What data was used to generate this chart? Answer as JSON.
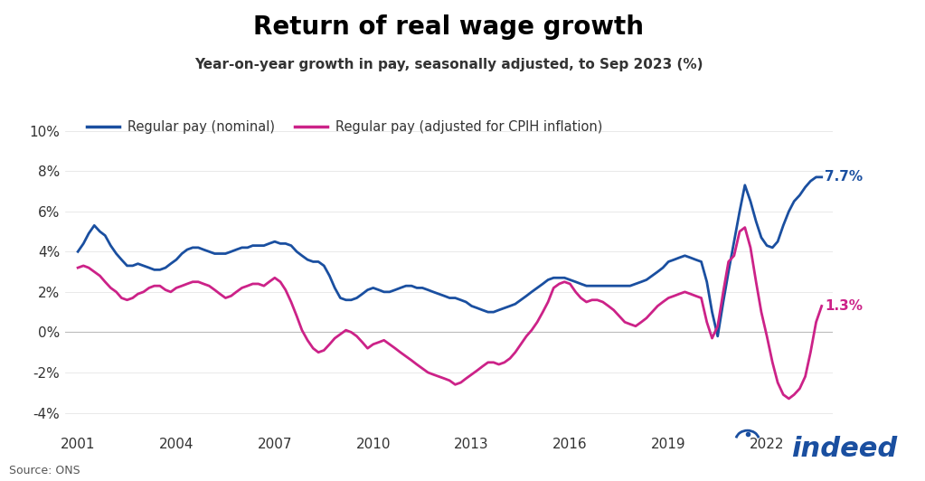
{
  "title": "Return of real wage growth",
  "subtitle": "Year-on-year growth in pay, seasonally adjusted, to Sep 2023 (%)",
  "source": "Source: ONS",
  "nominal_label": "Regular pay (nominal)",
  "real_label": "Regular pay (adjusted for CPIH inflation)",
  "nominal_color": "#1a4fa0",
  "real_color": "#cc2288",
  "nominal_end_label": "7.7%",
  "real_end_label": "1.3%",
  "ylim": [
    -5,
    11
  ],
  "yticks": [
    -4,
    -2,
    0,
    2,
    4,
    6,
    8,
    10
  ],
  "ytick_labels": [
    "-4%",
    "-2%",
    "0%",
    "2%",
    "4%",
    "6%",
    "8%",
    "10%"
  ],
  "xtick_years": [
    2001,
    2004,
    2007,
    2010,
    2013,
    2016,
    2019,
    2022
  ],
  "background_color": "#ffffff",
  "indeed_color": "#1a4fa0",
  "nominal_data": [
    [
      2001.0,
      4.0
    ],
    [
      2001.17,
      4.4
    ],
    [
      2001.33,
      4.9
    ],
    [
      2001.5,
      5.3
    ],
    [
      2001.67,
      5.0
    ],
    [
      2001.83,
      4.8
    ],
    [
      2002.0,
      4.3
    ],
    [
      2002.17,
      3.9
    ],
    [
      2002.33,
      3.6
    ],
    [
      2002.5,
      3.3
    ],
    [
      2002.67,
      3.3
    ],
    [
      2002.83,
      3.4
    ],
    [
      2003.0,
      3.3
    ],
    [
      2003.17,
      3.2
    ],
    [
      2003.33,
      3.1
    ],
    [
      2003.5,
      3.1
    ],
    [
      2003.67,
      3.2
    ],
    [
      2003.83,
      3.4
    ],
    [
      2004.0,
      3.6
    ],
    [
      2004.17,
      3.9
    ],
    [
      2004.33,
      4.1
    ],
    [
      2004.5,
      4.2
    ],
    [
      2004.67,
      4.2
    ],
    [
      2004.83,
      4.1
    ],
    [
      2005.0,
      4.0
    ],
    [
      2005.17,
      3.9
    ],
    [
      2005.33,
      3.9
    ],
    [
      2005.5,
      3.9
    ],
    [
      2005.67,
      4.0
    ],
    [
      2005.83,
      4.1
    ],
    [
      2006.0,
      4.2
    ],
    [
      2006.17,
      4.2
    ],
    [
      2006.33,
      4.3
    ],
    [
      2006.5,
      4.3
    ],
    [
      2006.67,
      4.3
    ],
    [
      2006.83,
      4.4
    ],
    [
      2007.0,
      4.5
    ],
    [
      2007.17,
      4.4
    ],
    [
      2007.33,
      4.4
    ],
    [
      2007.5,
      4.3
    ],
    [
      2007.67,
      4.0
    ],
    [
      2007.83,
      3.8
    ],
    [
      2008.0,
      3.6
    ],
    [
      2008.17,
      3.5
    ],
    [
      2008.33,
      3.5
    ],
    [
      2008.5,
      3.3
    ],
    [
      2008.67,
      2.8
    ],
    [
      2008.83,
      2.2
    ],
    [
      2009.0,
      1.7
    ],
    [
      2009.17,
      1.6
    ],
    [
      2009.33,
      1.6
    ],
    [
      2009.5,
      1.7
    ],
    [
      2009.67,
      1.9
    ],
    [
      2009.83,
      2.1
    ],
    [
      2010.0,
      2.2
    ],
    [
      2010.17,
      2.1
    ],
    [
      2010.33,
      2.0
    ],
    [
      2010.5,
      2.0
    ],
    [
      2010.67,
      2.1
    ],
    [
      2010.83,
      2.2
    ],
    [
      2011.0,
      2.3
    ],
    [
      2011.17,
      2.3
    ],
    [
      2011.33,
      2.2
    ],
    [
      2011.5,
      2.2
    ],
    [
      2011.67,
      2.1
    ],
    [
      2011.83,
      2.0
    ],
    [
      2012.0,
      1.9
    ],
    [
      2012.17,
      1.8
    ],
    [
      2012.33,
      1.7
    ],
    [
      2012.5,
      1.7
    ],
    [
      2012.67,
      1.6
    ],
    [
      2012.83,
      1.5
    ],
    [
      2013.0,
      1.3
    ],
    [
      2013.17,
      1.2
    ],
    [
      2013.33,
      1.1
    ],
    [
      2013.5,
      1.0
    ],
    [
      2013.67,
      1.0
    ],
    [
      2013.83,
      1.1
    ],
    [
      2014.0,
      1.2
    ],
    [
      2014.17,
      1.3
    ],
    [
      2014.33,
      1.4
    ],
    [
      2014.5,
      1.6
    ],
    [
      2014.67,
      1.8
    ],
    [
      2014.83,
      2.0
    ],
    [
      2015.0,
      2.2
    ],
    [
      2015.17,
      2.4
    ],
    [
      2015.33,
      2.6
    ],
    [
      2015.5,
      2.7
    ],
    [
      2015.67,
      2.7
    ],
    [
      2015.83,
      2.7
    ],
    [
      2016.0,
      2.6
    ],
    [
      2016.17,
      2.5
    ],
    [
      2016.33,
      2.4
    ],
    [
      2016.5,
      2.3
    ],
    [
      2016.67,
      2.3
    ],
    [
      2016.83,
      2.3
    ],
    [
      2017.0,
      2.3
    ],
    [
      2017.17,
      2.3
    ],
    [
      2017.33,
      2.3
    ],
    [
      2017.5,
      2.3
    ],
    [
      2017.67,
      2.3
    ],
    [
      2017.83,
      2.3
    ],
    [
      2018.0,
      2.4
    ],
    [
      2018.17,
      2.5
    ],
    [
      2018.33,
      2.6
    ],
    [
      2018.5,
      2.8
    ],
    [
      2018.67,
      3.0
    ],
    [
      2018.83,
      3.2
    ],
    [
      2019.0,
      3.5
    ],
    [
      2019.17,
      3.6
    ],
    [
      2019.33,
      3.7
    ],
    [
      2019.5,
      3.8
    ],
    [
      2019.67,
      3.7
    ],
    [
      2019.83,
      3.6
    ],
    [
      2020.0,
      3.5
    ],
    [
      2020.17,
      2.5
    ],
    [
      2020.33,
      1.0
    ],
    [
      2020.5,
      -0.2
    ],
    [
      2020.67,
      1.5
    ],
    [
      2020.83,
      3.0
    ],
    [
      2021.0,
      4.5
    ],
    [
      2021.17,
      6.0
    ],
    [
      2021.33,
      7.3
    ],
    [
      2021.5,
      6.5
    ],
    [
      2021.67,
      5.5
    ],
    [
      2021.83,
      4.7
    ],
    [
      2022.0,
      4.3
    ],
    [
      2022.17,
      4.2
    ],
    [
      2022.33,
      4.5
    ],
    [
      2022.5,
      5.3
    ],
    [
      2022.67,
      6.0
    ],
    [
      2022.83,
      6.5
    ],
    [
      2023.0,
      6.8
    ],
    [
      2023.17,
      7.2
    ],
    [
      2023.33,
      7.5
    ],
    [
      2023.5,
      7.7
    ],
    [
      2023.67,
      7.7
    ]
  ],
  "real_data": [
    [
      2001.0,
      3.2
    ],
    [
      2001.17,
      3.3
    ],
    [
      2001.33,
      3.2
    ],
    [
      2001.5,
      3.0
    ],
    [
      2001.67,
      2.8
    ],
    [
      2001.83,
      2.5
    ],
    [
      2002.0,
      2.2
    ],
    [
      2002.17,
      2.0
    ],
    [
      2002.33,
      1.7
    ],
    [
      2002.5,
      1.6
    ],
    [
      2002.67,
      1.7
    ],
    [
      2002.83,
      1.9
    ],
    [
      2003.0,
      2.0
    ],
    [
      2003.17,
      2.2
    ],
    [
      2003.33,
      2.3
    ],
    [
      2003.5,
      2.3
    ],
    [
      2003.67,
      2.1
    ],
    [
      2003.83,
      2.0
    ],
    [
      2004.0,
      2.2
    ],
    [
      2004.17,
      2.3
    ],
    [
      2004.33,
      2.4
    ],
    [
      2004.5,
      2.5
    ],
    [
      2004.67,
      2.5
    ],
    [
      2004.83,
      2.4
    ],
    [
      2005.0,
      2.3
    ],
    [
      2005.17,
      2.1
    ],
    [
      2005.33,
      1.9
    ],
    [
      2005.5,
      1.7
    ],
    [
      2005.67,
      1.8
    ],
    [
      2005.83,
      2.0
    ],
    [
      2006.0,
      2.2
    ],
    [
      2006.17,
      2.3
    ],
    [
      2006.33,
      2.4
    ],
    [
      2006.5,
      2.4
    ],
    [
      2006.67,
      2.3
    ],
    [
      2006.83,
      2.5
    ],
    [
      2007.0,
      2.7
    ],
    [
      2007.17,
      2.5
    ],
    [
      2007.33,
      2.1
    ],
    [
      2007.5,
      1.5
    ],
    [
      2007.67,
      0.8
    ],
    [
      2007.83,
      0.1
    ],
    [
      2008.0,
      -0.4
    ],
    [
      2008.17,
      -0.8
    ],
    [
      2008.33,
      -1.0
    ],
    [
      2008.5,
      -0.9
    ],
    [
      2008.67,
      -0.6
    ],
    [
      2008.83,
      -0.3
    ],
    [
      2009.0,
      -0.1
    ],
    [
      2009.17,
      0.1
    ],
    [
      2009.33,
      0.0
    ],
    [
      2009.5,
      -0.2
    ],
    [
      2009.67,
      -0.5
    ],
    [
      2009.83,
      -0.8
    ],
    [
      2010.0,
      -0.6
    ],
    [
      2010.17,
      -0.5
    ],
    [
      2010.33,
      -0.4
    ],
    [
      2010.5,
      -0.6
    ],
    [
      2010.67,
      -0.8
    ],
    [
      2010.83,
      -1.0
    ],
    [
      2011.0,
      -1.2
    ],
    [
      2011.17,
      -1.4
    ],
    [
      2011.33,
      -1.6
    ],
    [
      2011.5,
      -1.8
    ],
    [
      2011.67,
      -2.0
    ],
    [
      2011.83,
      -2.1
    ],
    [
      2012.0,
      -2.2
    ],
    [
      2012.17,
      -2.3
    ],
    [
      2012.33,
      -2.4
    ],
    [
      2012.5,
      -2.6
    ],
    [
      2012.67,
      -2.5
    ],
    [
      2012.83,
      -2.3
    ],
    [
      2013.0,
      -2.1
    ],
    [
      2013.17,
      -1.9
    ],
    [
      2013.33,
      -1.7
    ],
    [
      2013.5,
      -1.5
    ],
    [
      2013.67,
      -1.5
    ],
    [
      2013.83,
      -1.6
    ],
    [
      2014.0,
      -1.5
    ],
    [
      2014.17,
      -1.3
    ],
    [
      2014.33,
      -1.0
    ],
    [
      2014.5,
      -0.6
    ],
    [
      2014.67,
      -0.2
    ],
    [
      2014.83,
      0.1
    ],
    [
      2015.0,
      0.5
    ],
    [
      2015.17,
      1.0
    ],
    [
      2015.33,
      1.5
    ],
    [
      2015.5,
      2.2
    ],
    [
      2015.67,
      2.4
    ],
    [
      2015.83,
      2.5
    ],
    [
      2016.0,
      2.4
    ],
    [
      2016.17,
      2.0
    ],
    [
      2016.33,
      1.7
    ],
    [
      2016.5,
      1.5
    ],
    [
      2016.67,
      1.6
    ],
    [
      2016.83,
      1.6
    ],
    [
      2017.0,
      1.5
    ],
    [
      2017.17,
      1.3
    ],
    [
      2017.33,
      1.1
    ],
    [
      2017.5,
      0.8
    ],
    [
      2017.67,
      0.5
    ],
    [
      2017.83,
      0.4
    ],
    [
      2018.0,
      0.3
    ],
    [
      2018.17,
      0.5
    ],
    [
      2018.33,
      0.7
    ],
    [
      2018.5,
      1.0
    ],
    [
      2018.67,
      1.3
    ],
    [
      2018.83,
      1.5
    ],
    [
      2019.0,
      1.7
    ],
    [
      2019.17,
      1.8
    ],
    [
      2019.33,
      1.9
    ],
    [
      2019.5,
      2.0
    ],
    [
      2019.67,
      1.9
    ],
    [
      2019.83,
      1.8
    ],
    [
      2020.0,
      1.7
    ],
    [
      2020.17,
      0.5
    ],
    [
      2020.33,
      -0.3
    ],
    [
      2020.5,
      0.3
    ],
    [
      2020.67,
      2.0
    ],
    [
      2020.83,
      3.5
    ],
    [
      2021.0,
      3.8
    ],
    [
      2021.17,
      5.0
    ],
    [
      2021.33,
      5.2
    ],
    [
      2021.5,
      4.2
    ],
    [
      2021.67,
      2.5
    ],
    [
      2021.83,
      1.0
    ],
    [
      2022.0,
      -0.2
    ],
    [
      2022.17,
      -1.5
    ],
    [
      2022.33,
      -2.5
    ],
    [
      2022.5,
      -3.1
    ],
    [
      2022.67,
      -3.3
    ],
    [
      2022.83,
      -3.1
    ],
    [
      2023.0,
      -2.8
    ],
    [
      2023.17,
      -2.2
    ],
    [
      2023.33,
      -1.0
    ],
    [
      2023.5,
      0.5
    ],
    [
      2023.67,
      1.3
    ]
  ]
}
